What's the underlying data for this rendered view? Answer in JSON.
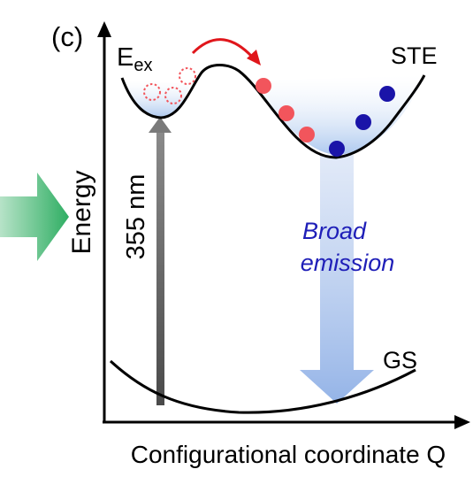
{
  "panel_label": "(c)",
  "upper_state_label": "E",
  "upper_state_subscript": "ex",
  "self_trapped_label": "STE",
  "ground_state_label": "GS",
  "y_axis_label": "Energy",
  "x_axis_label": "Configurational coordinate Q",
  "excitation_label": "355 nm",
  "emission_label_line1": "Broad",
  "emission_label_line2": "emission",
  "colors": {
    "excited_carrier": "#f2555c",
    "trapped_carrier": "#1a14a8",
    "hop_arrow": "#e0161b",
    "emission_text": "#1f1fb8",
    "emission_band": "#8fb0e6",
    "well_fill": "#a9c6ee",
    "excitation_arrow": "#6b6b6b",
    "side_arrow": "#38b46a"
  }
}
